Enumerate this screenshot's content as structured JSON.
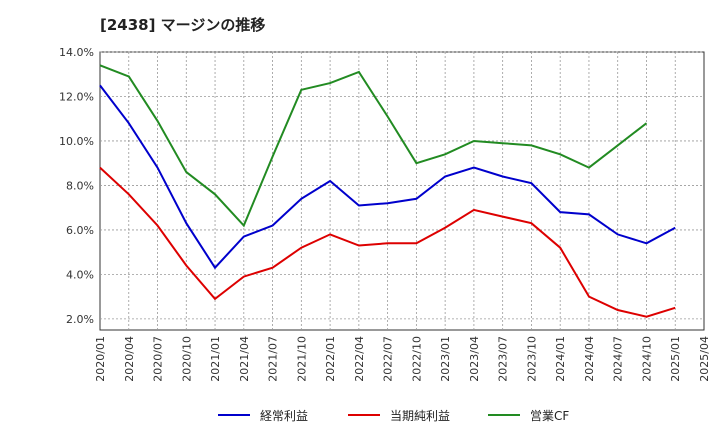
{
  "chart_data": {
    "type": "line",
    "title": "[2438]  マージンの推移",
    "x": [
      "2020/01",
      "2020/04",
      "2020/07",
      "2020/10",
      "2021/01",
      "2021/04",
      "2021/07",
      "2021/10",
      "2022/01",
      "2022/04",
      "2022/07",
      "2022/10",
      "2023/01",
      "2023/04",
      "2023/07",
      "2023/10",
      "2024/01",
      "2024/04",
      "2024/07",
      "2024/10",
      "2025/01",
      "2025/04"
    ],
    "yticks": [
      "2.0%",
      "4.0%",
      "6.0%",
      "8.0%",
      "10.0%",
      "12.0%",
      "14.0%"
    ],
    "ylim": [
      1.5,
      14.0
    ],
    "grid": true,
    "legend_position": "bottom",
    "series": [
      {
        "name": "経常利益",
        "color": "#0000cc",
        "values": [
          12.5,
          10.8,
          8.8,
          6.3,
          4.3,
          5.7,
          6.2,
          7.4,
          8.2,
          7.1,
          7.2,
          7.4,
          8.4,
          8.8,
          8.4,
          8.1,
          6.8,
          6.7,
          5.8,
          5.4,
          6.1,
          null
        ]
      },
      {
        "name": "当期純利益",
        "color": "#dd0000",
        "values": [
          8.8,
          7.6,
          6.2,
          4.4,
          2.9,
          3.9,
          4.3,
          5.2,
          5.8,
          5.3,
          5.4,
          5.4,
          6.1,
          6.9,
          6.6,
          6.3,
          5.2,
          3.0,
          2.4,
          2.1,
          2.5,
          null
        ]
      },
      {
        "name": "営業CF",
        "color": "#228b22",
        "values": [
          13.4,
          12.9,
          10.9,
          8.6,
          7.6,
          6.2,
          9.3,
          12.3,
          12.6,
          13.1,
          11.1,
          9.0,
          9.4,
          10.0,
          9.9,
          9.8,
          9.4,
          8.8,
          9.8,
          10.8,
          null,
          null
        ]
      }
    ]
  }
}
